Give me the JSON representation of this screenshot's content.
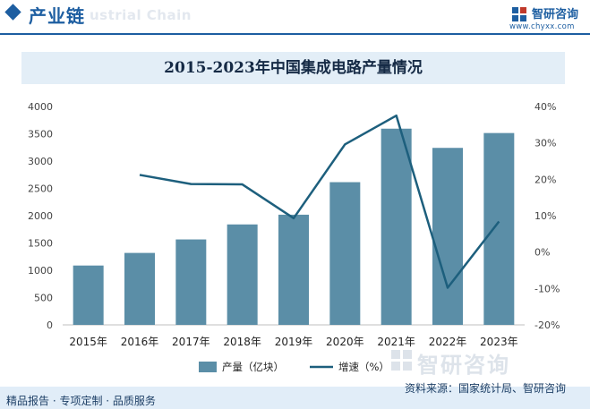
{
  "header": {
    "title": "产业链",
    "watermark": "ustrial Chain"
  },
  "brand": {
    "name": "智研咨询",
    "url": "www.chyxx.com",
    "watermark_name": "智研咨询"
  },
  "footer": {
    "left": "精品报告 · 专项定制 · 品质服务",
    "source": "资料来源：国家统计局、智研咨询"
  },
  "colors": {
    "bar": "#5b8ea7",
    "line": "#1d5f7d",
    "brand": "#1d5ea1"
  },
  "chart_data": {
    "type": "bar",
    "title": "2015-2023年中国集成电路产量情况",
    "categories": [
      "2015年",
      "2016年",
      "2017年",
      "2018年",
      "2019年",
      "2020年",
      "2021年",
      "2022年",
      "2023年"
    ],
    "series": [
      {
        "name": "产量（亿块）",
        "type": "bar",
        "axis": "left",
        "values": [
          1087,
          1318,
          1565,
          1840,
          2018,
          2614,
          3594,
          3242,
          3514
        ]
      },
      {
        "name": "增速（%）",
        "type": "line",
        "axis": "right",
        "values": [
          null,
          21.2,
          18.7,
          18.6,
          9.3,
          29.6,
          37.5,
          -9.8,
          8.4
        ]
      }
    ],
    "y_left": {
      "min": 0,
      "max": 4000,
      "step": 500,
      "ticks": [
        "0",
        "500",
        "1000",
        "1500",
        "2000",
        "2500",
        "3000",
        "3500",
        "4000"
      ]
    },
    "y_right": {
      "min": -20,
      "max": 40,
      "step": 10,
      "ticks": [
        "-20%",
        "-10%",
        "0%",
        "10%",
        "20%",
        "30%",
        "40%"
      ]
    },
    "grid": false,
    "legend_position": "bottom-center"
  }
}
